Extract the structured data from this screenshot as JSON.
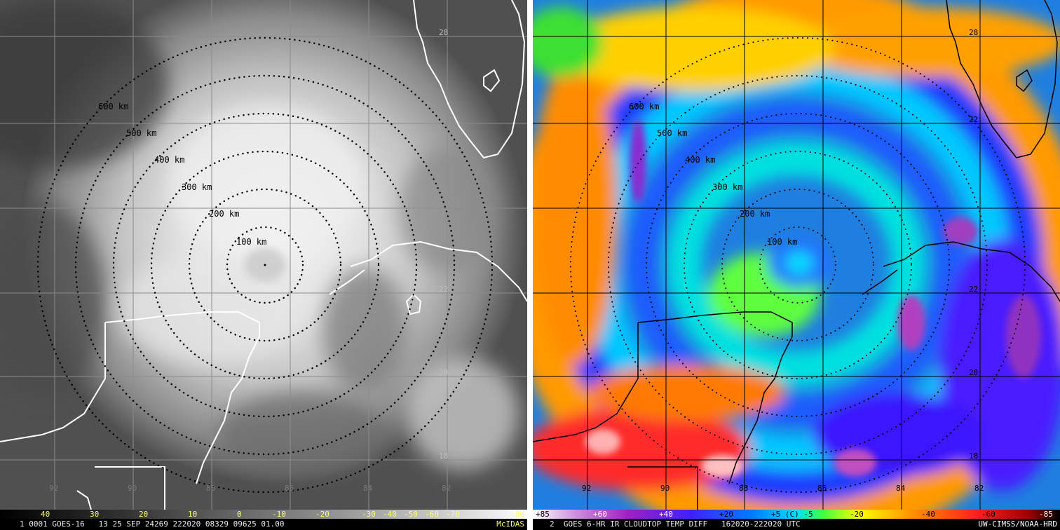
{
  "left_panel": {
    "range_labels": [
      "100 km",
      "200 km",
      "300 km",
      "400 km",
      "500 km",
      "600 km"
    ],
    "lat_labels": [
      "28",
      "22",
      "20",
      "18"
    ],
    "lon_labels": [
      "92",
      "90",
      "88",
      "86",
      "84",
      "82"
    ],
    "scale_values": [
      "40",
      "30",
      "20",
      "10",
      "0",
      "-10",
      "-20",
      "-30",
      "-40",
      "-50",
      "-60",
      "-70",
      "-80"
    ],
    "status_left": "1 0001 GOES-16   13 25 SEP 24269 222020 08329 09625 01.00",
    "status_right": "McIDAS"
  },
  "right_panel": {
    "range_labels": [
      "100 km",
      "200 km",
      "300 km",
      "400 km",
      "500 km",
      "600 km"
    ],
    "lat_labels": [
      "28",
      "22",
      "22",
      "20",
      "18"
    ],
    "lon_labels": [
      "92",
      "90",
      "88",
      "86",
      "84",
      "82"
    ],
    "scale_values": [
      "+85",
      "+60",
      "+40",
      "+20",
      "+5 (C) -5",
      "-20",
      "-40",
      "-60",
      "-85"
    ],
    "status_left": "2  GOES 6-HR IR CLOUDTOP TEMP DIFF   162020-222020 UTC",
    "status_right": "UW-CIMSS/NOAA-HRD"
  },
  "colors": {
    "rings": "#000000",
    "coastline_left": "#ffffff",
    "coastline_right": "#000000",
    "scale_text_left": "#ffff66",
    "status_right_left": "#ffff66",
    "status_right_right": "#ffffff"
  }
}
